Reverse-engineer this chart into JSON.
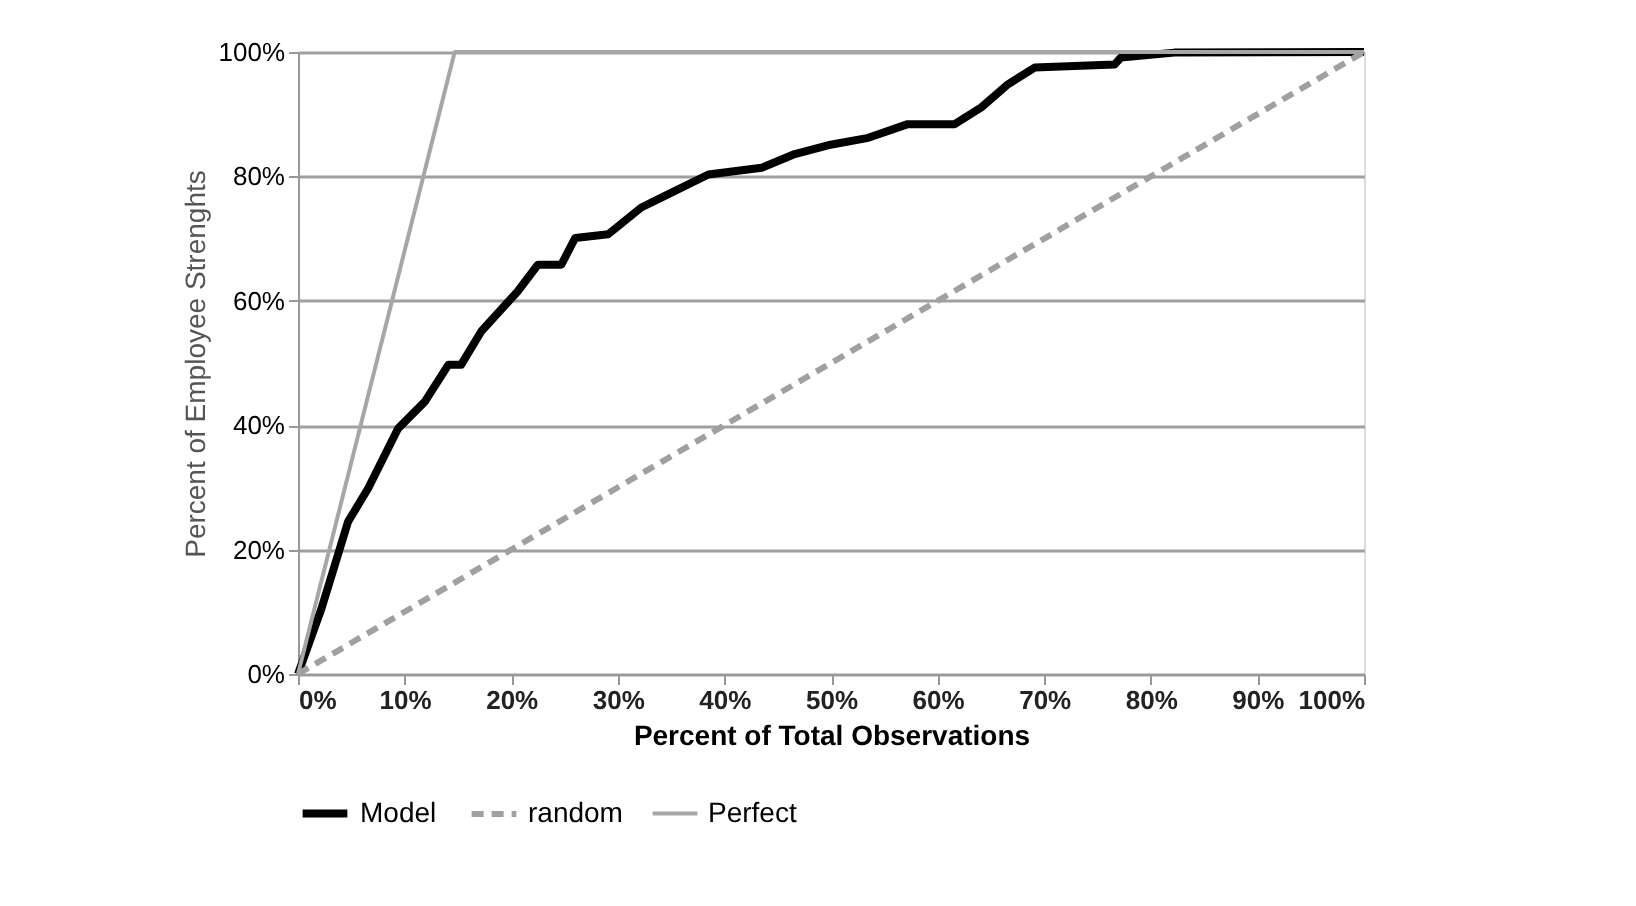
{
  "chart_data": {
    "type": "line",
    "xlabel": "Percent of Total Observations",
    "ylabel": "Percent of Employee Strenghts",
    "xlim": [
      0,
      100
    ],
    "ylim": [
      0,
      100
    ],
    "xticks": [
      {
        "value": 0,
        "label": "0%"
      },
      {
        "value": 10,
        "label": "10%"
      },
      {
        "value": 20,
        "label": "20%"
      },
      {
        "value": 30,
        "label": "30%"
      },
      {
        "value": 40,
        "label": "40%"
      },
      {
        "value": 50,
        "label": "50%"
      },
      {
        "value": 60,
        "label": "60%"
      },
      {
        "value": 70,
        "label": "70%"
      },
      {
        "value": 80,
        "label": "80%"
      },
      {
        "value": 90,
        "label": "90%"
      },
      {
        "value": 100,
        "label": "100%"
      }
    ],
    "yticks": [
      {
        "value": 0,
        "label": "0%"
      },
      {
        "value": 20,
        "label": "20%"
      },
      {
        "value": 40,
        "label": "40%"
      },
      {
        "value": 60,
        "label": "60%"
      },
      {
        "value": 80,
        "label": "80%"
      },
      {
        "value": 100,
        "label": "100%"
      }
    ],
    "grid": "y",
    "legend": "bottom",
    "marker": "none",
    "series": [
      {
        "name": "Model",
        "color": "#000000",
        "line_style": "solid",
        "x": [
          0,
          2.2,
          4.7,
          6.6,
          9.4,
          11.9,
          14.1,
          15.3,
          17.2,
          20.6,
          22.5,
          24.7,
          26,
          29.1,
          32.2,
          34.7,
          38.5,
          43.5,
          46.6,
          49.7,
          53.5,
          57.2,
          61.6,
          64.1,
          66.6,
          69.1,
          76.6,
          77.2,
          82.2,
          100
        ],
        "values": [
          0,
          10.5,
          24.5,
          29.9,
          39.5,
          43.8,
          49.7,
          49.7,
          55.1,
          61.5,
          65.8,
          65.8,
          70.1,
          70.7,
          75,
          77.1,
          80.3,
          81.4,
          83.6,
          85,
          86.2,
          88.4,
          88.4,
          91.1,
          94.8,
          97.5,
          98,
          99.1,
          99.9,
          100
        ]
      },
      {
        "name": "random",
        "color": "#a0a0a0",
        "line_style": "dashed",
        "x": [
          0,
          100
        ],
        "values": [
          0,
          100
        ]
      },
      {
        "name": "Perfect",
        "color": "#a6a6a6",
        "line_style": "solid",
        "x": [
          0,
          14.7,
          100
        ],
        "values": [
          0,
          100,
          100
        ]
      }
    ]
  }
}
